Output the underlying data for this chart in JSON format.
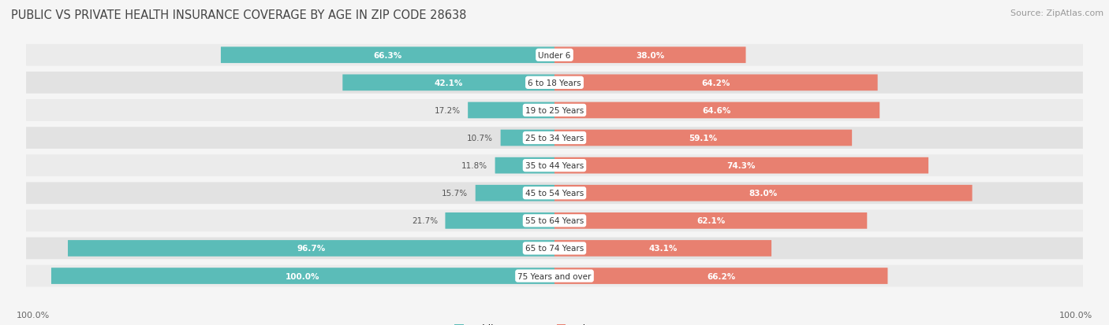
{
  "title": "PUBLIC VS PRIVATE HEALTH INSURANCE COVERAGE BY AGE IN ZIP CODE 28638",
  "source": "Source: ZipAtlas.com",
  "categories": [
    "Under 6",
    "6 to 18 Years",
    "19 to 25 Years",
    "25 to 34 Years",
    "35 to 44 Years",
    "45 to 54 Years",
    "55 to 64 Years",
    "65 to 74 Years",
    "75 Years and over"
  ],
  "public_values": [
    66.3,
    42.1,
    17.2,
    10.7,
    11.8,
    15.7,
    21.7,
    96.7,
    100.0
  ],
  "private_values": [
    38.0,
    64.2,
    64.6,
    59.1,
    74.3,
    83.0,
    62.1,
    43.1,
    66.2
  ],
  "public_color": "#5bbcb8",
  "private_color": "#e88070",
  "bg_color": "#f5f5f5",
  "row_bg_light": "#ebebeb",
  "row_bg_dark": "#e2e2e2",
  "title_fontsize": 10.5,
  "source_fontsize": 8,
  "category_fontsize": 7.5,
  "value_fontsize": 7.5,
  "legend_fontsize": 8.5,
  "footer_fontsize": 8,
  "max_val": 100.0,
  "pub_label_threshold": 25,
  "priv_label_threshold": 20
}
